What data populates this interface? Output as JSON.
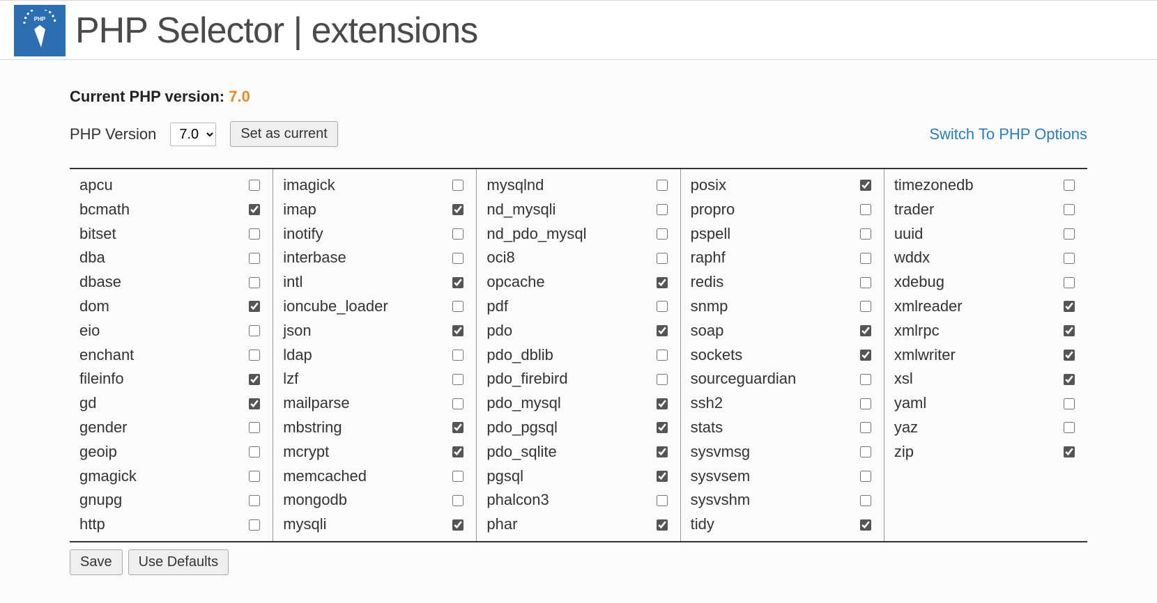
{
  "header": {
    "title": "PHP Selector | extensions"
  },
  "version": {
    "label": "Current PHP version:",
    "value": "7.0",
    "selector_label": "PHP Version",
    "selected": "7.0",
    "set_current_label": "Set as current",
    "switch_link": "Switch To PHP Options"
  },
  "extensions": {
    "columns": [
      [
        {
          "name": "apcu",
          "checked": false
        },
        {
          "name": "bcmath",
          "checked": true
        },
        {
          "name": "bitset",
          "checked": false
        },
        {
          "name": "dba",
          "checked": false
        },
        {
          "name": "dbase",
          "checked": false
        },
        {
          "name": "dom",
          "checked": true
        },
        {
          "name": "eio",
          "checked": false
        },
        {
          "name": "enchant",
          "checked": false
        },
        {
          "name": "fileinfo",
          "checked": true
        },
        {
          "name": "gd",
          "checked": true
        },
        {
          "name": "gender",
          "checked": false
        },
        {
          "name": "geoip",
          "checked": false
        },
        {
          "name": "gmagick",
          "checked": false
        },
        {
          "name": "gnupg",
          "checked": false
        },
        {
          "name": "http",
          "checked": false
        }
      ],
      [
        {
          "name": "imagick",
          "checked": false
        },
        {
          "name": "imap",
          "checked": true
        },
        {
          "name": "inotify",
          "checked": false
        },
        {
          "name": "interbase",
          "checked": false
        },
        {
          "name": "intl",
          "checked": true
        },
        {
          "name": "ioncube_loader",
          "checked": false
        },
        {
          "name": "json",
          "checked": true
        },
        {
          "name": "ldap",
          "checked": false
        },
        {
          "name": "lzf",
          "checked": false
        },
        {
          "name": "mailparse",
          "checked": false
        },
        {
          "name": "mbstring",
          "checked": true
        },
        {
          "name": "mcrypt",
          "checked": true
        },
        {
          "name": "memcached",
          "checked": false
        },
        {
          "name": "mongodb",
          "checked": false
        },
        {
          "name": "mysqli",
          "checked": true
        }
      ],
      [
        {
          "name": "mysqlnd",
          "checked": false
        },
        {
          "name": "nd_mysqli",
          "checked": false
        },
        {
          "name": "nd_pdo_mysql",
          "checked": false
        },
        {
          "name": "oci8",
          "checked": false
        },
        {
          "name": "opcache",
          "checked": true
        },
        {
          "name": "pdf",
          "checked": false
        },
        {
          "name": "pdo",
          "checked": true
        },
        {
          "name": "pdo_dblib",
          "checked": false
        },
        {
          "name": "pdo_firebird",
          "checked": false
        },
        {
          "name": "pdo_mysql",
          "checked": true
        },
        {
          "name": "pdo_pgsql",
          "checked": true
        },
        {
          "name": "pdo_sqlite",
          "checked": true
        },
        {
          "name": "pgsql",
          "checked": true
        },
        {
          "name": "phalcon3",
          "checked": false
        },
        {
          "name": "phar",
          "checked": true
        }
      ],
      [
        {
          "name": "posix",
          "checked": true
        },
        {
          "name": "propro",
          "checked": false
        },
        {
          "name": "pspell",
          "checked": false
        },
        {
          "name": "raphf",
          "checked": false
        },
        {
          "name": "redis",
          "checked": false
        },
        {
          "name": "snmp",
          "checked": false
        },
        {
          "name": "soap",
          "checked": true
        },
        {
          "name": "sockets",
          "checked": true
        },
        {
          "name": "sourceguardian",
          "checked": false
        },
        {
          "name": "ssh2",
          "checked": false
        },
        {
          "name": "stats",
          "checked": false
        },
        {
          "name": "sysvmsg",
          "checked": false
        },
        {
          "name": "sysvsem",
          "checked": false
        },
        {
          "name": "sysvshm",
          "checked": false
        },
        {
          "name": "tidy",
          "checked": true
        }
      ],
      [
        {
          "name": "timezonedb",
          "checked": false
        },
        {
          "name": "trader",
          "checked": false
        },
        {
          "name": "uuid",
          "checked": false
        },
        {
          "name": "wddx",
          "checked": false
        },
        {
          "name": "xdebug",
          "checked": false
        },
        {
          "name": "xmlreader",
          "checked": true
        },
        {
          "name": "xmlrpc",
          "checked": true
        },
        {
          "name": "xmlwriter",
          "checked": true
        },
        {
          "name": "xsl",
          "checked": true
        },
        {
          "name": "yaml",
          "checked": false
        },
        {
          "name": "yaz",
          "checked": false
        },
        {
          "name": "zip",
          "checked": true
        }
      ]
    ]
  },
  "footer": {
    "save_label": "Save",
    "defaults_label": "Use Defaults"
  }
}
